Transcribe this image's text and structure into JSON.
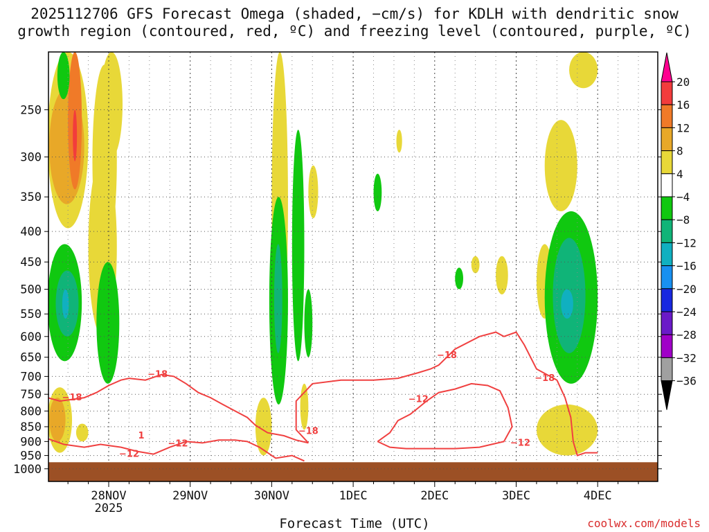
{
  "title_line1": "2025112706 GFS Forecast Omega (shaded, −cm/s) for KDLH with dendritic snow",
  "title_line2": "growth region (contoured, red, ºC) and freezing level (contoured, purple, ºC)",
  "xlabel": "Forecast Time (UTC)",
  "credit": "coolwx.com/models",
  "chart_data": {
    "type": "heatmap",
    "title": "2025112706 GFS Forecast Omega (shaded, −cm/s) for KDLH with dendritic snow growth region (contoured, red, ºC) and freezing level (contoured, purple, ºC)",
    "xlabel": "Forecast Time (UTC)",
    "ylabel": "",
    "y_scale": "log-pressure (inverted)",
    "ylim": [
      1050,
      200
    ],
    "y_ticks": [
      250,
      300,
      350,
      400,
      450,
      500,
      550,
      600,
      650,
      700,
      750,
      800,
      850,
      900,
      950,
      1000
    ],
    "x_start": "2025-11-27 06Z",
    "x_end": "2025-12-04 18Z",
    "x_ticks": [
      {
        "label": "28NOV",
        "sublabel": "2025",
        "t": "2025-11-28 00Z"
      },
      {
        "label": "29NOV",
        "sublabel": "",
        "t": "2025-11-29 00Z"
      },
      {
        "label": "30NOV",
        "sublabel": "",
        "t": "2025-11-30 00Z"
      },
      {
        "label": "1DEC",
        "sublabel": "",
        "t": "2025-12-01 00Z"
      },
      {
        "label": "2DEC",
        "sublabel": "",
        "t": "2025-12-02 00Z"
      },
      {
        "label": "3DEC",
        "sublabel": "",
        "t": "2025-12-03 00Z"
      },
      {
        "label": "4DEC",
        "sublabel": "",
        "t": "2025-12-04 00Z"
      }
    ],
    "grid": true,
    "colorbar": {
      "placement": "right",
      "levels": [
        20,
        16,
        12,
        8,
        4,
        -4,
        -8,
        -12,
        -16,
        -20,
        -24,
        -28,
        -32,
        -36
      ],
      "colors": [
        "#ff0090",
        "#f23c3c",
        "#f07a28",
        "#e8a828",
        "#e8d838",
        "#ffffff",
        "#10c810",
        "#10b478",
        "#10b0c0",
        "#1890f0",
        "#1828e0",
        "#6a1ac8",
        "#a000c8",
        "#a0a0a0",
        "#000000"
      ]
    },
    "shading_colors": {
      "yellow": "#e8d838",
      "gold": "#e8a828",
      "orange": "#f07a28",
      "red": "#f23c3c",
      "green": "#10c810",
      "teal": "#10b478",
      "cyan": "#10b0c0",
      "ground": "#9c5025",
      "contour": "#f04040"
    },
    "shaded_regions": [
      {
        "level": 4,
        "color": "yellow",
        "t0": 0,
        "t1": 0.5,
        "p_top": 200,
        "p_bot": 395
      },
      {
        "level": 8,
        "color": "gold",
        "t0": 0.02,
        "t1": 0.45,
        "p_top": 230,
        "p_bot": 360
      },
      {
        "level": 12,
        "color": "orange",
        "t0": 0.25,
        "t1": 0.42,
        "p_top": 200,
        "p_bot": 340
      },
      {
        "level": 16,
        "color": "red",
        "t0": 0.31,
        "t1": 0.36,
        "p_top": 250,
        "p_bot": 305
      },
      {
        "level": 4,
        "color": "yellow",
        "t0": 0.55,
        "t1": 0.85,
        "p_top": 210,
        "p_bot": 440
      },
      {
        "level": 4,
        "color": "yellow",
        "t0": 0.5,
        "t1": 0.85,
        "p_top": 300,
        "p_bot": 600
      },
      {
        "level": -8,
        "color": "green",
        "t0": 0.12,
        "t1": 0.27,
        "p_top": 200,
        "p_bot": 240
      },
      {
        "level": -8,
        "color": "green",
        "t0": 0.0,
        "t1": 0.42,
        "p_top": 420,
        "p_bot": 660
      },
      {
        "level": -12,
        "color": "teal",
        "t0": 0.1,
        "t1": 0.38,
        "p_top": 465,
        "p_bot": 600
      },
      {
        "level": -16,
        "color": "cyan",
        "t0": 0.18,
        "t1": 0.26,
        "p_top": 500,
        "p_bot": 560
      },
      {
        "level": -8,
        "color": "green",
        "t0": 0.6,
        "t1": 0.88,
        "p_top": 450,
        "p_bot": 720
      },
      {
        "level": 4,
        "color": "yellow",
        "t0": 0.0,
        "t1": 0.3,
        "p_top": 730,
        "p_bot": 940
      },
      {
        "level": 8,
        "color": "gold",
        "t0": 0.02,
        "t1": 0.22,
        "p_top": 760,
        "p_bot": 900
      },
      {
        "level": 4,
        "color": "yellow",
        "t0": 0.35,
        "t1": 0.5,
        "p_top": 840,
        "p_bot": 900
      },
      {
        "level": 4,
        "color": "yellow",
        "t0": 0.65,
        "t1": 0.92,
        "p_top": 200,
        "p_bot": 300
      },
      {
        "level": 4,
        "color": "yellow",
        "t0": 2.55,
        "t1": 2.75,
        "p_top": 760,
        "p_bot": 950
      },
      {
        "level": 4,
        "color": "yellow",
        "t0": 2.75,
        "t1": 2.95,
        "p_top": 200,
        "p_bot": 640
      },
      {
        "level": 4,
        "color": "yellow",
        "t0": 3.1,
        "t1": 3.2,
        "p_top": 720,
        "p_bot": 860
      },
      {
        "level": -8,
        "color": "green",
        "t0": 2.72,
        "t1": 2.95,
        "p_top": 350,
        "p_bot": 780
      },
      {
        "level": -12,
        "color": "teal",
        "t0": 2.78,
        "t1": 2.88,
        "p_top": 420,
        "p_bot": 640
      },
      {
        "level": -8,
        "color": "green",
        "t0": 3.0,
        "t1": 3.15,
        "p_top": 270,
        "p_bot": 660
      },
      {
        "level": -8,
        "color": "green",
        "t0": 3.15,
        "t1": 3.25,
        "p_top": 500,
        "p_bot": 650
      },
      {
        "level": 4,
        "color": "yellow",
        "t0": 3.2,
        "t1": 3.32,
        "p_top": 310,
        "p_bot": 380
      },
      {
        "level": -8,
        "color": "green",
        "t0": 4.0,
        "t1": 4.1,
        "p_top": 320,
        "p_bot": 370
      },
      {
        "level": 4,
        "color": "yellow",
        "t0": 4.28,
        "t1": 4.35,
        "p_top": 270,
        "p_bot": 295
      },
      {
        "level": -8,
        "color": "green",
        "t0": 5.0,
        "t1": 5.1,
        "p_top": 460,
        "p_bot": 500
      },
      {
        "level": 4,
        "color": "yellow",
        "t0": 5.2,
        "t1": 5.3,
        "p_top": 440,
        "p_bot": 470
      },
      {
        "level": 4,
        "color": "yellow",
        "t0": 5.5,
        "t1": 5.65,
        "p_top": 440,
        "p_bot": 510
      },
      {
        "level": 4,
        "color": "yellow",
        "t0": 6.1,
        "t1": 6.5,
        "p_top": 260,
        "p_bot": 370
      },
      {
        "level": 4,
        "color": "yellow",
        "t0": 6.0,
        "t1": 6.2,
        "p_top": 420,
        "p_bot": 560
      },
      {
        "level": -8,
        "color": "green",
        "t0": 6.1,
        "t1": 6.75,
        "p_top": 370,
        "p_bot": 720
      },
      {
        "level": -12,
        "color": "teal",
        "t0": 6.2,
        "t1": 6.6,
        "p_top": 410,
        "p_bot": 640
      },
      {
        "level": -16,
        "color": "cyan",
        "t0": 6.3,
        "t1": 6.45,
        "p_top": 500,
        "p_bot": 560
      },
      {
        "level": 4,
        "color": "yellow",
        "t0": 6.0,
        "t1": 6.75,
        "p_top": 780,
        "p_bot": 950
      },
      {
        "level": 4,
        "color": "yellow",
        "t0": 6.4,
        "t1": 6.75,
        "p_top": 200,
        "p_bot": 230
      }
    ],
    "contours": [
      {
        "label": "-18",
        "level": -18,
        "t": [
          0,
          0.15,
          0.3,
          0.45,
          0.6,
          0.75,
          0.9,
          1.0,
          1.2,
          1.4,
          1.55,
          1.7,
          1.85,
          2.0,
          2.15,
          2.3,
          2.45,
          2.55,
          2.7,
          2.9,
          3.05,
          3.2
        ],
        "p": [
          760,
          770,
          765,
          760,
          745,
          725,
          710,
          705,
          710,
          695,
          700,
          720,
          745,
          760,
          780,
          800,
          820,
          845,
          870,
          880,
          895,
          905
        ]
      },
      {
        "label": "-18",
        "level": -18,
        "t": [
          3.2,
          3.05,
          3.05,
          3.25,
          3.6,
          4.0,
          4.3,
          4.55,
          4.7,
          4.8,
          5.0,
          5.3,
          5.5,
          5.6,
          5.75,
          5.85,
          6.0,
          6.25
        ],
        "p": [
          905,
          860,
          770,
          720,
          710,
          710,
          705,
          690,
          680,
          670,
          630,
          600,
          590,
          600,
          590,
          620,
          680,
          710
        ]
      },
      {
        "label": "-12",
        "level": -12,
        "t": [
          0,
          0.2,
          0.45,
          0.65,
          0.9,
          1.1,
          1.3,
          1.5,
          1.7,
          1.9,
          2.1,
          2.3,
          2.45,
          2.6,
          2.8,
          3.0,
          3.15
        ],
        "p": [
          890,
          910,
          920,
          910,
          920,
          935,
          945,
          920,
          900,
          905,
          895,
          895,
          900,
          920,
          960,
          950,
          970
        ]
      },
      {
        "label": "-12",
        "level": -12,
        "t": [
          4.05,
          4.2,
          4.3,
          4.45,
          4.55,
          4.65,
          4.8,
          5.0,
          5.2,
          5.4,
          5.55,
          5.65,
          5.7,
          5.6,
          5.3,
          5.0,
          4.7,
          4.4,
          4.2,
          4.05
        ],
        "p": [
          900,
          870,
          830,
          810,
          790,
          770,
          745,
          735,
          720,
          725,
          740,
          790,
          850,
          900,
          920,
          925,
          925,
          925,
          920,
          900
        ]
      },
      {
        "label": "",
        "level": -18,
        "t": [
          6.25,
          6.35,
          6.42,
          6.45,
          6.5,
          6.6,
          6.75
        ],
        "p": [
          710,
          760,
          820,
          900,
          950,
          940,
          940
        ]
      }
    ],
    "contour_labels": [
      {
        "text": "−18",
        "t": 1.35,
        "p": 695
      },
      {
        "text": "−18",
        "t": 0.3,
        "p": 760
      },
      {
        "text": "−18",
        "t": 3.2,
        "p": 865
      },
      {
        "text": "−18",
        "t": 4.9,
        "p": 645
      },
      {
        "text": "−12",
        "t": 4.55,
        "p": 765
      },
      {
        "text": "−12",
        "t": 1.6,
        "p": 908
      },
      {
        "text": "−12",
        "t": 1.0,
        "p": 945
      },
      {
        "text": "−12",
        "t": 5.8,
        "p": 905
      },
      {
        "text": "−18",
        "t": 6.1,
        "p": 705
      },
      {
        "text": "1",
        "t": 1.15,
        "p": 880
      }
    ],
    "ground_pressure": 975
  }
}
